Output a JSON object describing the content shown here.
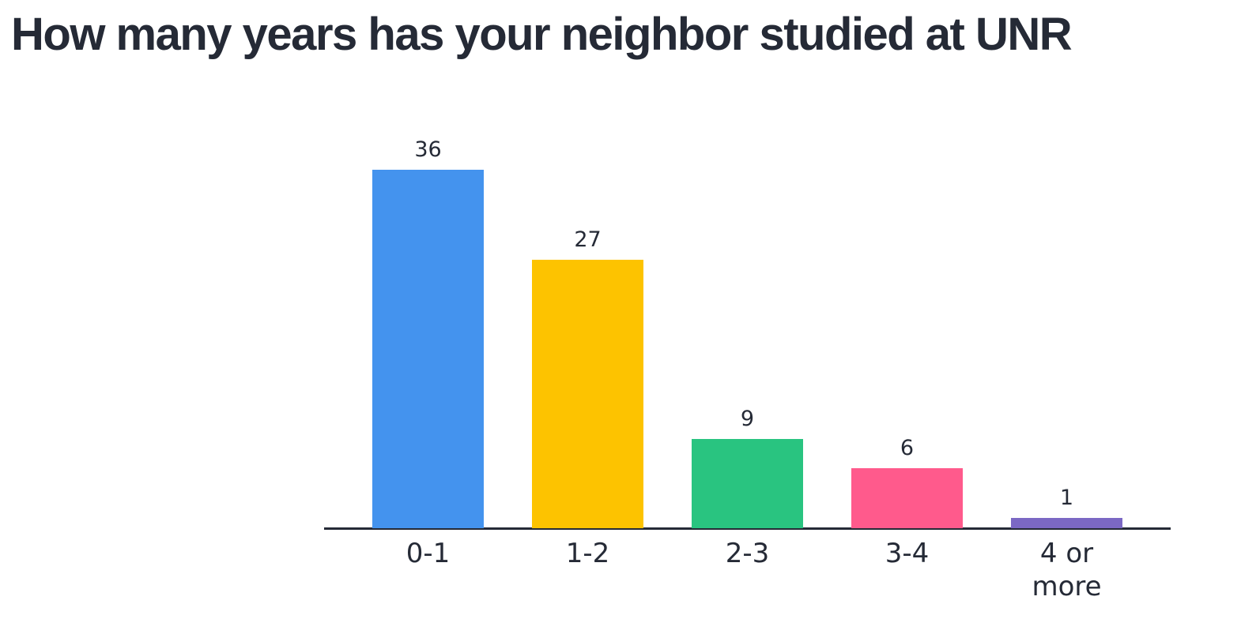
{
  "chart_data": {
    "type": "bar",
    "title": "How many years has your neighbor studied at UNR",
    "categories": [
      "0-1",
      "1-2",
      "2-3",
      "3-4",
      "4 or more"
    ],
    "values": [
      36,
      27,
      9,
      6,
      1
    ],
    "colors": [
      "#4493ee",
      "#fdc300",
      "#29c480",
      "#ff5a8c",
      "#7b68c4"
    ]
  }
}
